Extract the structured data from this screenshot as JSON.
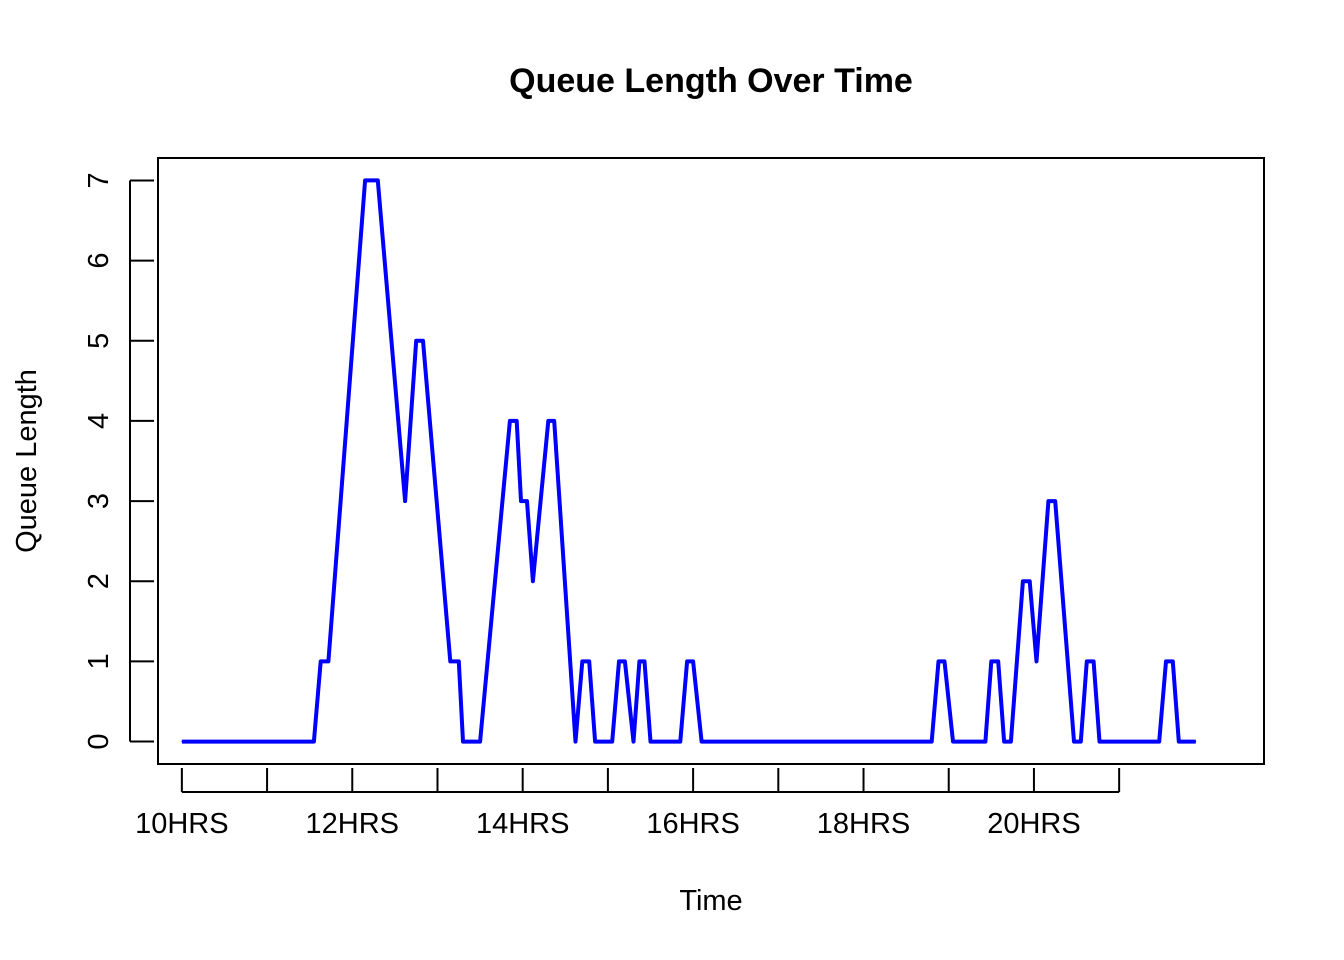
{
  "chart_data": {
    "type": "line",
    "title": "Queue Length Over Time",
    "xlabel": "Time",
    "ylabel": "Queue Length",
    "xlim": [
      -0.28,
      12.7
    ],
    "ylim": [
      -0.28,
      7.28
    ],
    "x_ticks": [
      0,
      1,
      2,
      3,
      4,
      5,
      6,
      7,
      8,
      9,
      10,
      11
    ],
    "x_tick_labels": [
      {
        "x": 0,
        "label": "10HRS"
      },
      {
        "x": 2,
        "label": "12HRS"
      },
      {
        "x": 4,
        "label": "14HRS"
      },
      {
        "x": 6,
        "label": "16HRS"
      },
      {
        "x": 8,
        "label": "18HRS"
      },
      {
        "x": 10,
        "label": "20HRS"
      }
    ],
    "y_ticks": [
      0,
      1,
      2,
      3,
      4,
      5,
      6,
      7
    ],
    "y_tick_labels": [
      "0",
      "1",
      "2",
      "3",
      "4",
      "5",
      "6",
      "7"
    ],
    "grid": false,
    "series": [
      {
        "color": "#0000ff",
        "x": [
          0,
          1.55,
          1.63,
          1.72,
          2.15,
          2.3,
          2.62,
          2.75,
          2.83,
          3.15,
          3.25,
          3.3,
          3.5,
          3.85,
          3.93,
          3.98,
          4.05,
          4.12,
          4.3,
          4.37,
          4.62,
          4.7,
          4.78,
          4.85,
          5.05,
          5.13,
          5.2,
          5.3,
          5.37,
          5.43,
          5.5,
          5.85,
          5.93,
          6.0,
          6.1,
          8.8,
          8.88,
          8.95,
          9.05,
          9.43,
          9.5,
          9.58,
          9.65,
          9.73,
          9.87,
          9.95,
          10.03,
          10.17,
          10.25,
          10.47,
          10.55,
          10.62,
          10.7,
          10.77,
          11.47,
          11.55,
          11.63,
          11.7,
          11.9
        ],
        "y": [
          0,
          0,
          1,
          1,
          7,
          7,
          3,
          5,
          5,
          1,
          1,
          0,
          0,
          4,
          4,
          3,
          3,
          2,
          4,
          4,
          0,
          1,
          1,
          0,
          0,
          1,
          1,
          0,
          1,
          1,
          0,
          0,
          1,
          1,
          0,
          0,
          1,
          1,
          0,
          0,
          1,
          1,
          0,
          0,
          2,
          2,
          1,
          3,
          3,
          0,
          0,
          1,
          1,
          0,
          0,
          1,
          1,
          0,
          0
        ]
      }
    ]
  }
}
